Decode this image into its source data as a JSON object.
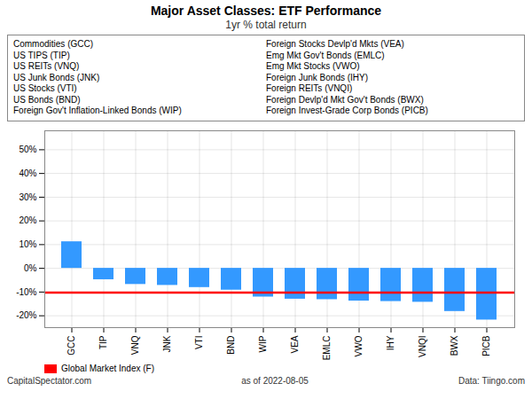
{
  "chart_data": {
    "type": "bar",
    "title": "Major Asset Classes: ETF Performance",
    "subtitle": "1yr % total return",
    "categories": [
      "GCC",
      "TIP",
      "VNQ",
      "JNK",
      "VTI",
      "BND",
      "WIP",
      "VEA",
      "EMLC",
      "VWO",
      "IHY",
      "VNQI",
      "BWX",
      "PICB"
    ],
    "values": [
      11.2,
      -4.8,
      -6.8,
      -7.2,
      -8.1,
      -9.2,
      -12.1,
      -13.0,
      -13.2,
      -13.8,
      -14.0,
      -14.3,
      -18.2,
      -21.8
    ],
    "color": "#3399FF",
    "ylim": [
      -25,
      58
    ],
    "yticks": [
      {
        "value": -20,
        "label": "-20%"
      },
      {
        "value": -10,
        "label": "-10%"
      },
      {
        "value": 0,
        "label": "0%"
      },
      {
        "value": 10,
        "label": "10%"
      },
      {
        "value": 20,
        "label": "20%"
      },
      {
        "value": 30,
        "label": "30%"
      },
      {
        "value": 40,
        "label": "40%"
      },
      {
        "value": 50,
        "label": "50%"
      }
    ],
    "grid": true,
    "reference_line": {
      "value": -10.2,
      "color": "#FF0000",
      "name": "Global Market Index (F)"
    },
    "legend": "lower left",
    "annotations": [
      [
        "Commodities (GCC)",
        "US TIPS (TIP)",
        "US REITs (VNQ)",
        "US Junk Bonds (JNK)",
        "US Stocks (VTI)",
        "US Bonds (BND)",
        "Foreign Gov't Inflation-Linked Bonds (WIP)"
      ],
      [
        "Foreign Stocks Devlp'd Mkts (VEA)",
        "Emg Mkt Gov't Bonds (EMLC)",
        "Emg Mkt Stocks (VWO)",
        "Foreign Junk Bonds (IHY)",
        "Foreign REITs (VNQI)",
        "Foreign Devlp'd Mkt Gov't Bonds (BWX)",
        "Foreign Invest-Grade Corp Bonds (PICB)"
      ]
    ],
    "footer": [
      "CapitalSpectator.com",
      "as of  2022-08-05",
      "Data: Tiingo.com"
    ]
  }
}
